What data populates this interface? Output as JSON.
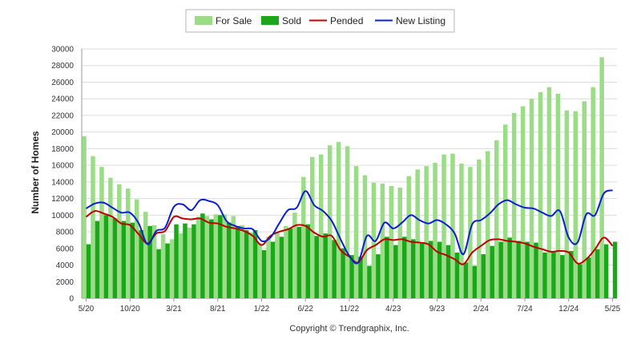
{
  "colors": {
    "for_sale": "#9bdc86",
    "sold": "#1aa81a",
    "pended": "#c00000",
    "new_listing": "#0a1fd1"
  },
  "chart_data": {
    "type": "bar",
    "ylabel": "Number of Homes",
    "ylim": [
      0,
      30000
    ],
    "yticks": [
      0,
      2000,
      4000,
      6000,
      8000,
      10000,
      12000,
      14000,
      16000,
      18000,
      20000,
      22000,
      24000,
      26000,
      28000,
      30000
    ],
    "ytick_labels": [
      "0",
      "2000",
      "4000",
      "6000",
      "8000",
      "10000",
      "12000",
      "14000",
      "16000",
      "18000",
      "20000",
      "22000",
      "24000",
      "26000",
      "28000",
      "30000"
    ],
    "grid": true,
    "legend_position": "top-center",
    "categories": [
      "5/20",
      "6/20",
      "7/20",
      "8/20",
      "9/20",
      "10/20",
      "11/20",
      "12/20",
      "1/21",
      "2/21",
      "3/21",
      "4/21",
      "5/21",
      "6/21",
      "7/21",
      "8/21",
      "9/21",
      "10/21",
      "11/21",
      "12/21",
      "1/22",
      "2/22",
      "3/22",
      "4/22",
      "5/22",
      "6/22",
      "7/22",
      "8/22",
      "9/22",
      "10/22",
      "11/22",
      "12/22",
      "1/23",
      "2/23",
      "3/23",
      "4/23",
      "5/23",
      "6/23",
      "7/23",
      "8/23",
      "9/23",
      "10/23",
      "11/23",
      "12/23",
      "1/24",
      "2/24",
      "3/24",
      "4/24",
      "5/24",
      "6/24",
      "7/24",
      "8/24",
      "9/24",
      "10/24",
      "11/24",
      "12/24",
      "1/25",
      "2/25",
      "3/25",
      "4/25",
      "5/25"
    ],
    "xtick_labels": [
      "5/20",
      "10/20",
      "3/21",
      "8/21",
      "1/22",
      "6/22",
      "11/22",
      "4/23",
      "9/23",
      "2/24",
      "7/24",
      "12/24",
      "5/25"
    ],
    "series": [
      {
        "name": "For Sale",
        "kind": "bar",
        "values": [
          19500,
          17100,
          15800,
          14500,
          13700,
          13200,
          11900,
          10400,
          8800,
          7700,
          7100,
          7800,
          8500,
          9800,
          9900,
          10100,
          10100,
          9900,
          8800,
          7900,
          6600,
          7400,
          8000,
          8700,
          10300,
          14600,
          17000,
          17300,
          18400,
          18800,
          18300,
          15900,
          14800,
          13900,
          13800,
          13500,
          13300,
          14700,
          15500,
          15900,
          16300,
          17300,
          17400,
          16200,
          15800,
          16700,
          17700,
          19000,
          20900,
          22300,
          23100,
          24000,
          24800,
          25400,
          24600,
          22600,
          22500,
          23700,
          25400,
          29000,
          null
        ]
      },
      {
        "name": "Sold",
        "kind": "bar",
        "values": [
          6500,
          9300,
          10000,
          9600,
          9300,
          9100,
          8200,
          8700,
          5900,
          6600,
          8900,
          9000,
          8900,
          10200,
          9500,
          10000,
          9100,
          8700,
          8200,
          8200,
          5800,
          6800,
          7400,
          8400,
          8600,
          8900,
          7500,
          7800,
          7000,
          6000,
          5200,
          5000,
          3900,
          5300,
          7400,
          6400,
          7400,
          7100,
          6600,
          6900,
          6800,
          6400,
          5500,
          4300,
          3900,
          5300,
          6300,
          6800,
          7300,
          6900,
          6800,
          6700,
          5500,
          5700,
          5200,
          5700,
          4100,
          4900,
          5900,
          6500,
          6800
        ]
      },
      {
        "name": "Pended",
        "kind": "line",
        "values": [
          9800,
          10500,
          10200,
          9800,
          9000,
          8800,
          7700,
          6600,
          7800,
          8100,
          9800,
          9600,
          9500,
          9600,
          9100,
          9000,
          8600,
          8400,
          8100,
          7500,
          6400,
          7500,
          8000,
          8300,
          8800,
          8700,
          7900,
          7400,
          7500,
          5800,
          5000,
          4300,
          5800,
          6400,
          7100,
          7000,
          7100,
          6800,
          6700,
          6500,
          5600,
          5200,
          4700,
          4100,
          5500,
          6300,
          7000,
          7100,
          6900,
          6800,
          6600,
          6200,
          5900,
          5600,
          5700,
          5500,
          4200,
          4700,
          5900,
          7300,
          6300
        ]
      },
      {
        "name": "New Listing",
        "kind": "line",
        "values": [
          10800,
          11400,
          11500,
          10900,
          10300,
          10300,
          9000,
          6500,
          8100,
          8500,
          11000,
          11300,
          10600,
          11800,
          11700,
          11200,
          9300,
          8700,
          8400,
          8300,
          6900,
          7300,
          9000,
          10600,
          10900,
          12900,
          11200,
          10500,
          9300,
          7100,
          5100,
          4300,
          7500,
          6900,
          9100,
          8400,
          9100,
          10000,
          9400,
          9000,
          9400,
          8900,
          7800,
          5300,
          8900,
          9400,
          10200,
          11300,
          11800,
          11300,
          10900,
          10800,
          10300,
          9900,
          10500,
          7300,
          6700,
          10100,
          10000,
          12600,
          13000
        ]
      }
    ]
  },
  "legend": [
    {
      "label": "For Sale",
      "swatch": "box",
      "color_key": "for_sale"
    },
    {
      "label": "Sold",
      "swatch": "box",
      "color_key": "sold"
    },
    {
      "label": "Pended",
      "swatch": "line",
      "color_key": "pended"
    },
    {
      "label": "New Listing",
      "swatch": "line",
      "color_key": "new_listing"
    }
  ],
  "footer": {
    "copyright": "Copyright © Trendgraphix, Inc."
  }
}
